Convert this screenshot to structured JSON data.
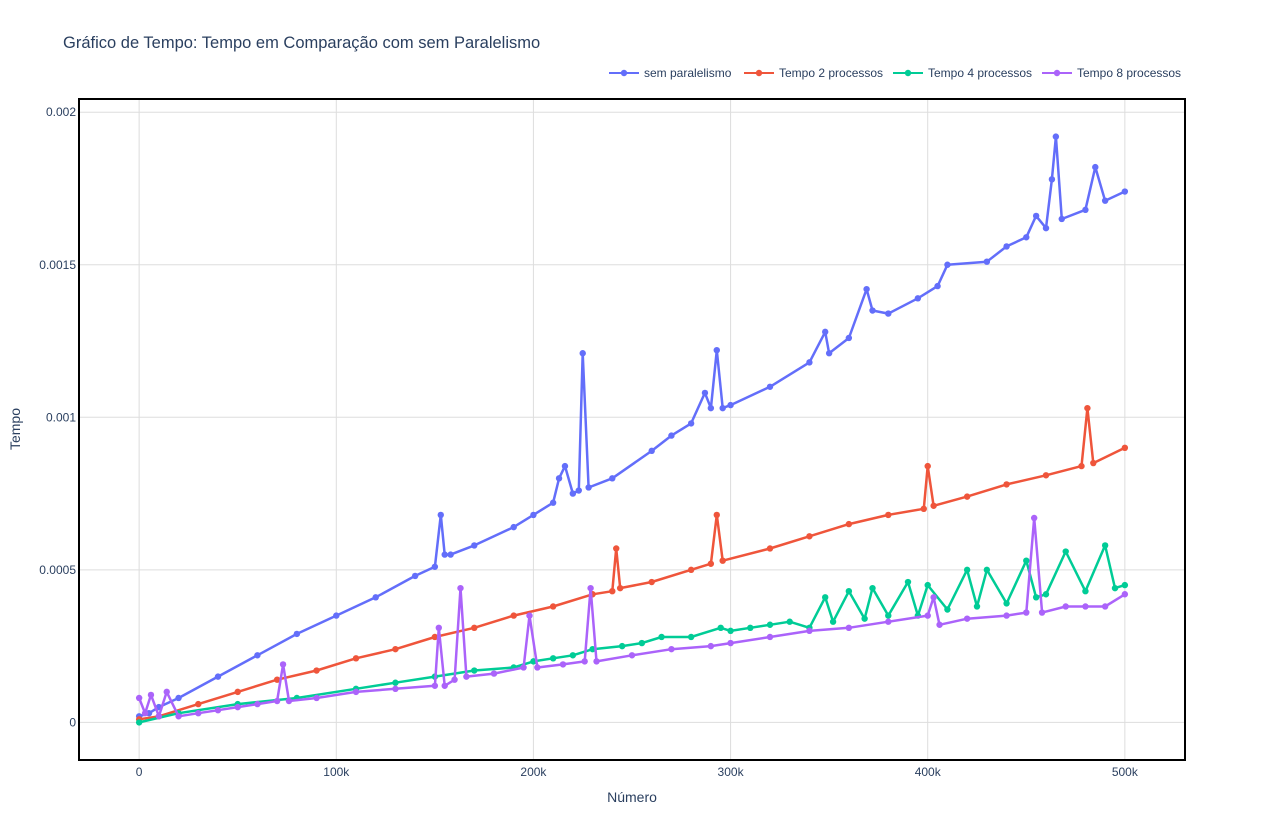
{
  "chart_data": {
    "type": "line",
    "title": "Gráfico de Tempo: Tempo em Comparação com sem Paralelismo",
    "xlabel": "Número",
    "ylabel": "Tempo",
    "xlim": [
      -30000,
      530000
    ],
    "ylim": [
      -0.00012,
      0.00204
    ],
    "x_ticks": [
      0,
      100000,
      200000,
      300000,
      400000,
      500000
    ],
    "x_tick_labels": [
      "0",
      "100k",
      "200k",
      "300k",
      "400k",
      "500k"
    ],
    "y_ticks": [
      0,
      0.0005,
      0.001,
      0.0015,
      0.002
    ],
    "y_tick_labels": [
      "0",
      "0.0005",
      "0.001",
      "0.0015",
      "0.002"
    ],
    "grid": true,
    "legend_position": "top-right",
    "series": [
      {
        "name": "sem paralelismo",
        "color": "#636efa",
        "x": [
          0,
          5000,
          10000,
          20000,
          40000,
          60000,
          80000,
          100000,
          120000,
          140000,
          150000,
          153000,
          155000,
          158000,
          170000,
          190000,
          200000,
          210000,
          213000,
          216000,
          220000,
          223000,
          225000,
          228000,
          240000,
          260000,
          270000,
          280000,
          287000,
          290000,
          293000,
          296000,
          300000,
          320000,
          340000,
          348000,
          350000,
          360000,
          369000,
          372000,
          380000,
          395000,
          405000,
          410000,
          430000,
          440000,
          450000,
          455000,
          460000,
          463000,
          465000,
          468000,
          480000,
          485000,
          490000,
          500000
        ],
        "y": [
          2e-05,
          3e-05,
          5e-05,
          8e-05,
          0.00015,
          0.00022,
          0.00029,
          0.00035,
          0.00041,
          0.00048,
          0.00051,
          0.00068,
          0.00055,
          0.00055,
          0.00058,
          0.00064,
          0.00068,
          0.00072,
          0.0008,
          0.00084,
          0.00075,
          0.00076,
          0.00121,
          0.00077,
          0.0008,
          0.00089,
          0.00094,
          0.00098,
          0.00108,
          0.00103,
          0.00122,
          0.00103,
          0.00104,
          0.0011,
          0.00118,
          0.00128,
          0.00121,
          0.00126,
          0.00142,
          0.00135,
          0.00134,
          0.00139,
          0.00143,
          0.0015,
          0.00151,
          0.00156,
          0.00159,
          0.00166,
          0.00162,
          0.00178,
          0.00192,
          0.00165,
          0.00168,
          0.00182,
          0.00171,
          0.00174
        ]
      },
      {
        "name": "Tempo 2 processos",
        "color": "#ef553b",
        "x": [
          0,
          10000,
          30000,
          50000,
          70000,
          90000,
          110000,
          130000,
          150000,
          170000,
          190000,
          210000,
          230000,
          240000,
          242000,
          244000,
          260000,
          280000,
          290000,
          293000,
          296000,
          320000,
          340000,
          360000,
          380000,
          398000,
          400000,
          403000,
          420000,
          440000,
          460000,
          478000,
          481000,
          484000,
          500000
        ],
        "y": [
          1e-05,
          2e-05,
          6e-05,
          0.0001,
          0.00014,
          0.00017,
          0.00021,
          0.00024,
          0.00028,
          0.00031,
          0.00035,
          0.00038,
          0.00042,
          0.00043,
          0.00057,
          0.00044,
          0.00046,
          0.0005,
          0.00052,
          0.00068,
          0.00053,
          0.00057,
          0.00061,
          0.00065,
          0.00068,
          0.0007,
          0.00084,
          0.00071,
          0.00074,
          0.00078,
          0.00081,
          0.00084,
          0.00103,
          0.00085,
          0.0009
        ]
      },
      {
        "name": "Tempo 4 processos",
        "color": "#00cc96",
        "x": [
          0,
          20000,
          50000,
          80000,
          110000,
          130000,
          150000,
          170000,
          190000,
          200000,
          210000,
          220000,
          230000,
          245000,
          255000,
          265000,
          280000,
          295000,
          300000,
          310000,
          320000,
          330000,
          340000,
          348000,
          352000,
          360000,
          368000,
          372000,
          380000,
          390000,
          395000,
          400000,
          410000,
          420000,
          425000,
          430000,
          440000,
          450000,
          455000,
          460000,
          470000,
          480000,
          490000,
          495000,
          500000
        ],
        "y": [
          0,
          3e-05,
          6e-05,
          8e-05,
          0.00011,
          0.00013,
          0.00015,
          0.00017,
          0.00018,
          0.0002,
          0.00021,
          0.00022,
          0.00024,
          0.00025,
          0.00026,
          0.00028,
          0.00028,
          0.00031,
          0.0003,
          0.00031,
          0.00032,
          0.00033,
          0.00031,
          0.00041,
          0.00033,
          0.00043,
          0.00034,
          0.00044,
          0.00035,
          0.00046,
          0.00035,
          0.00045,
          0.00037,
          0.0005,
          0.00038,
          0.0005,
          0.00039,
          0.00053,
          0.00041,
          0.00042,
          0.00056,
          0.00043,
          0.00058,
          0.00044,
          0.00045
        ]
      },
      {
        "name": "Tempo 8 processos",
        "color": "#ab63fa",
        "x": [
          0,
          3000,
          6000,
          10000,
          14000,
          20000,
          30000,
          40000,
          50000,
          60000,
          70000,
          73000,
          76000,
          90000,
          110000,
          130000,
          150000,
          152000,
          155000,
          160000,
          163000,
          166000,
          180000,
          195000,
          198000,
          202000,
          215000,
          226000,
          229000,
          232000,
          250000,
          270000,
          290000,
          300000,
          320000,
          340000,
          360000,
          380000,
          400000,
          403000,
          406000,
          420000,
          440000,
          450000,
          454000,
          458000,
          470000,
          480000,
          490000,
          500000
        ],
        "y": [
          8e-05,
          3e-05,
          9e-05,
          2e-05,
          0.0001,
          2e-05,
          3e-05,
          4e-05,
          5e-05,
          6e-05,
          7e-05,
          0.00019,
          7e-05,
          8e-05,
          0.0001,
          0.00011,
          0.00012,
          0.00031,
          0.00012,
          0.00014,
          0.00044,
          0.00015,
          0.00016,
          0.00018,
          0.00035,
          0.00018,
          0.00019,
          0.0002,
          0.00044,
          0.0002,
          0.00022,
          0.00024,
          0.00025,
          0.00026,
          0.00028,
          0.0003,
          0.00031,
          0.00033,
          0.00035,
          0.00041,
          0.00032,
          0.00034,
          0.00035,
          0.00036,
          0.00067,
          0.00036,
          0.00038,
          0.00038,
          0.00038,
          0.00042
        ]
      }
    ]
  }
}
